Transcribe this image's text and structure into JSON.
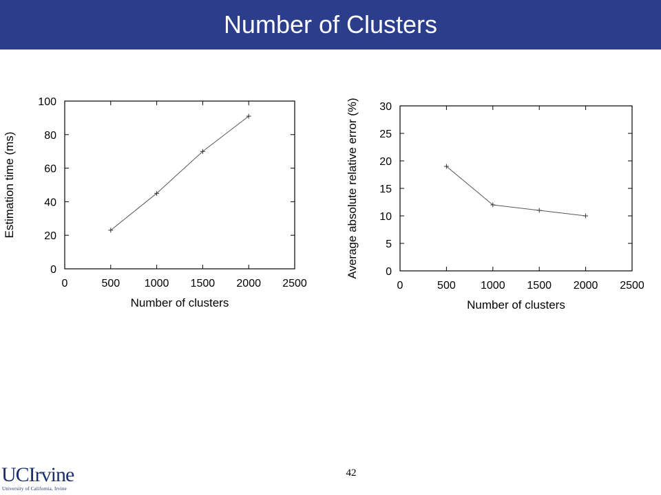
{
  "slide": {
    "title": "Number of Clusters",
    "page_number": "42",
    "colors": {
      "title_bar": "#2c3d8c",
      "title_text": "#ffffff",
      "logo": "#1b2e6e",
      "series": "#555555"
    }
  },
  "logo": {
    "main": "UCIrvine",
    "sub": "University of California, Irvine"
  },
  "chart_data": [
    {
      "type": "line",
      "xlabel": "Number of clusters",
      "ylabel": "Estimation time (ms)",
      "xlim": [
        0,
        2500
      ],
      "ylim": [
        0,
        100
      ],
      "xticks": [
        0,
        500,
        1000,
        1500,
        2000,
        2500
      ],
      "yticks": [
        0,
        20,
        40,
        60,
        80,
        100
      ],
      "grid": false,
      "marker": "+",
      "series": [
        {
          "x": [
            500,
            1000,
            1500,
            2000
          ],
          "y": [
            23,
            45,
            70,
            91
          ]
        }
      ]
    },
    {
      "type": "line",
      "xlabel": "Number of clusters",
      "ylabel": "Average absolute relative error (%)",
      "xlim": [
        0,
        2500
      ],
      "ylim": [
        0,
        30
      ],
      "xticks": [
        0,
        500,
        1000,
        1500,
        2000,
        2500
      ],
      "yticks": [
        0,
        5,
        10,
        15,
        20,
        25,
        30
      ],
      "grid": false,
      "marker": "+",
      "series": [
        {
          "x": [
            500,
            1000,
            1500,
            2000
          ],
          "y": [
            19,
            12,
            11,
            10
          ]
        }
      ]
    }
  ]
}
